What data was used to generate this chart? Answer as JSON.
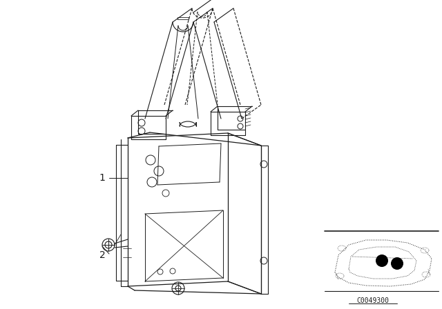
{
  "bg_color": "#ffffff",
  "line_color": "#1a1a1a",
  "label1": "1",
  "label2": "2",
  "part_code": "C0049300",
  "fig_width": 6.4,
  "fig_height": 4.48
}
